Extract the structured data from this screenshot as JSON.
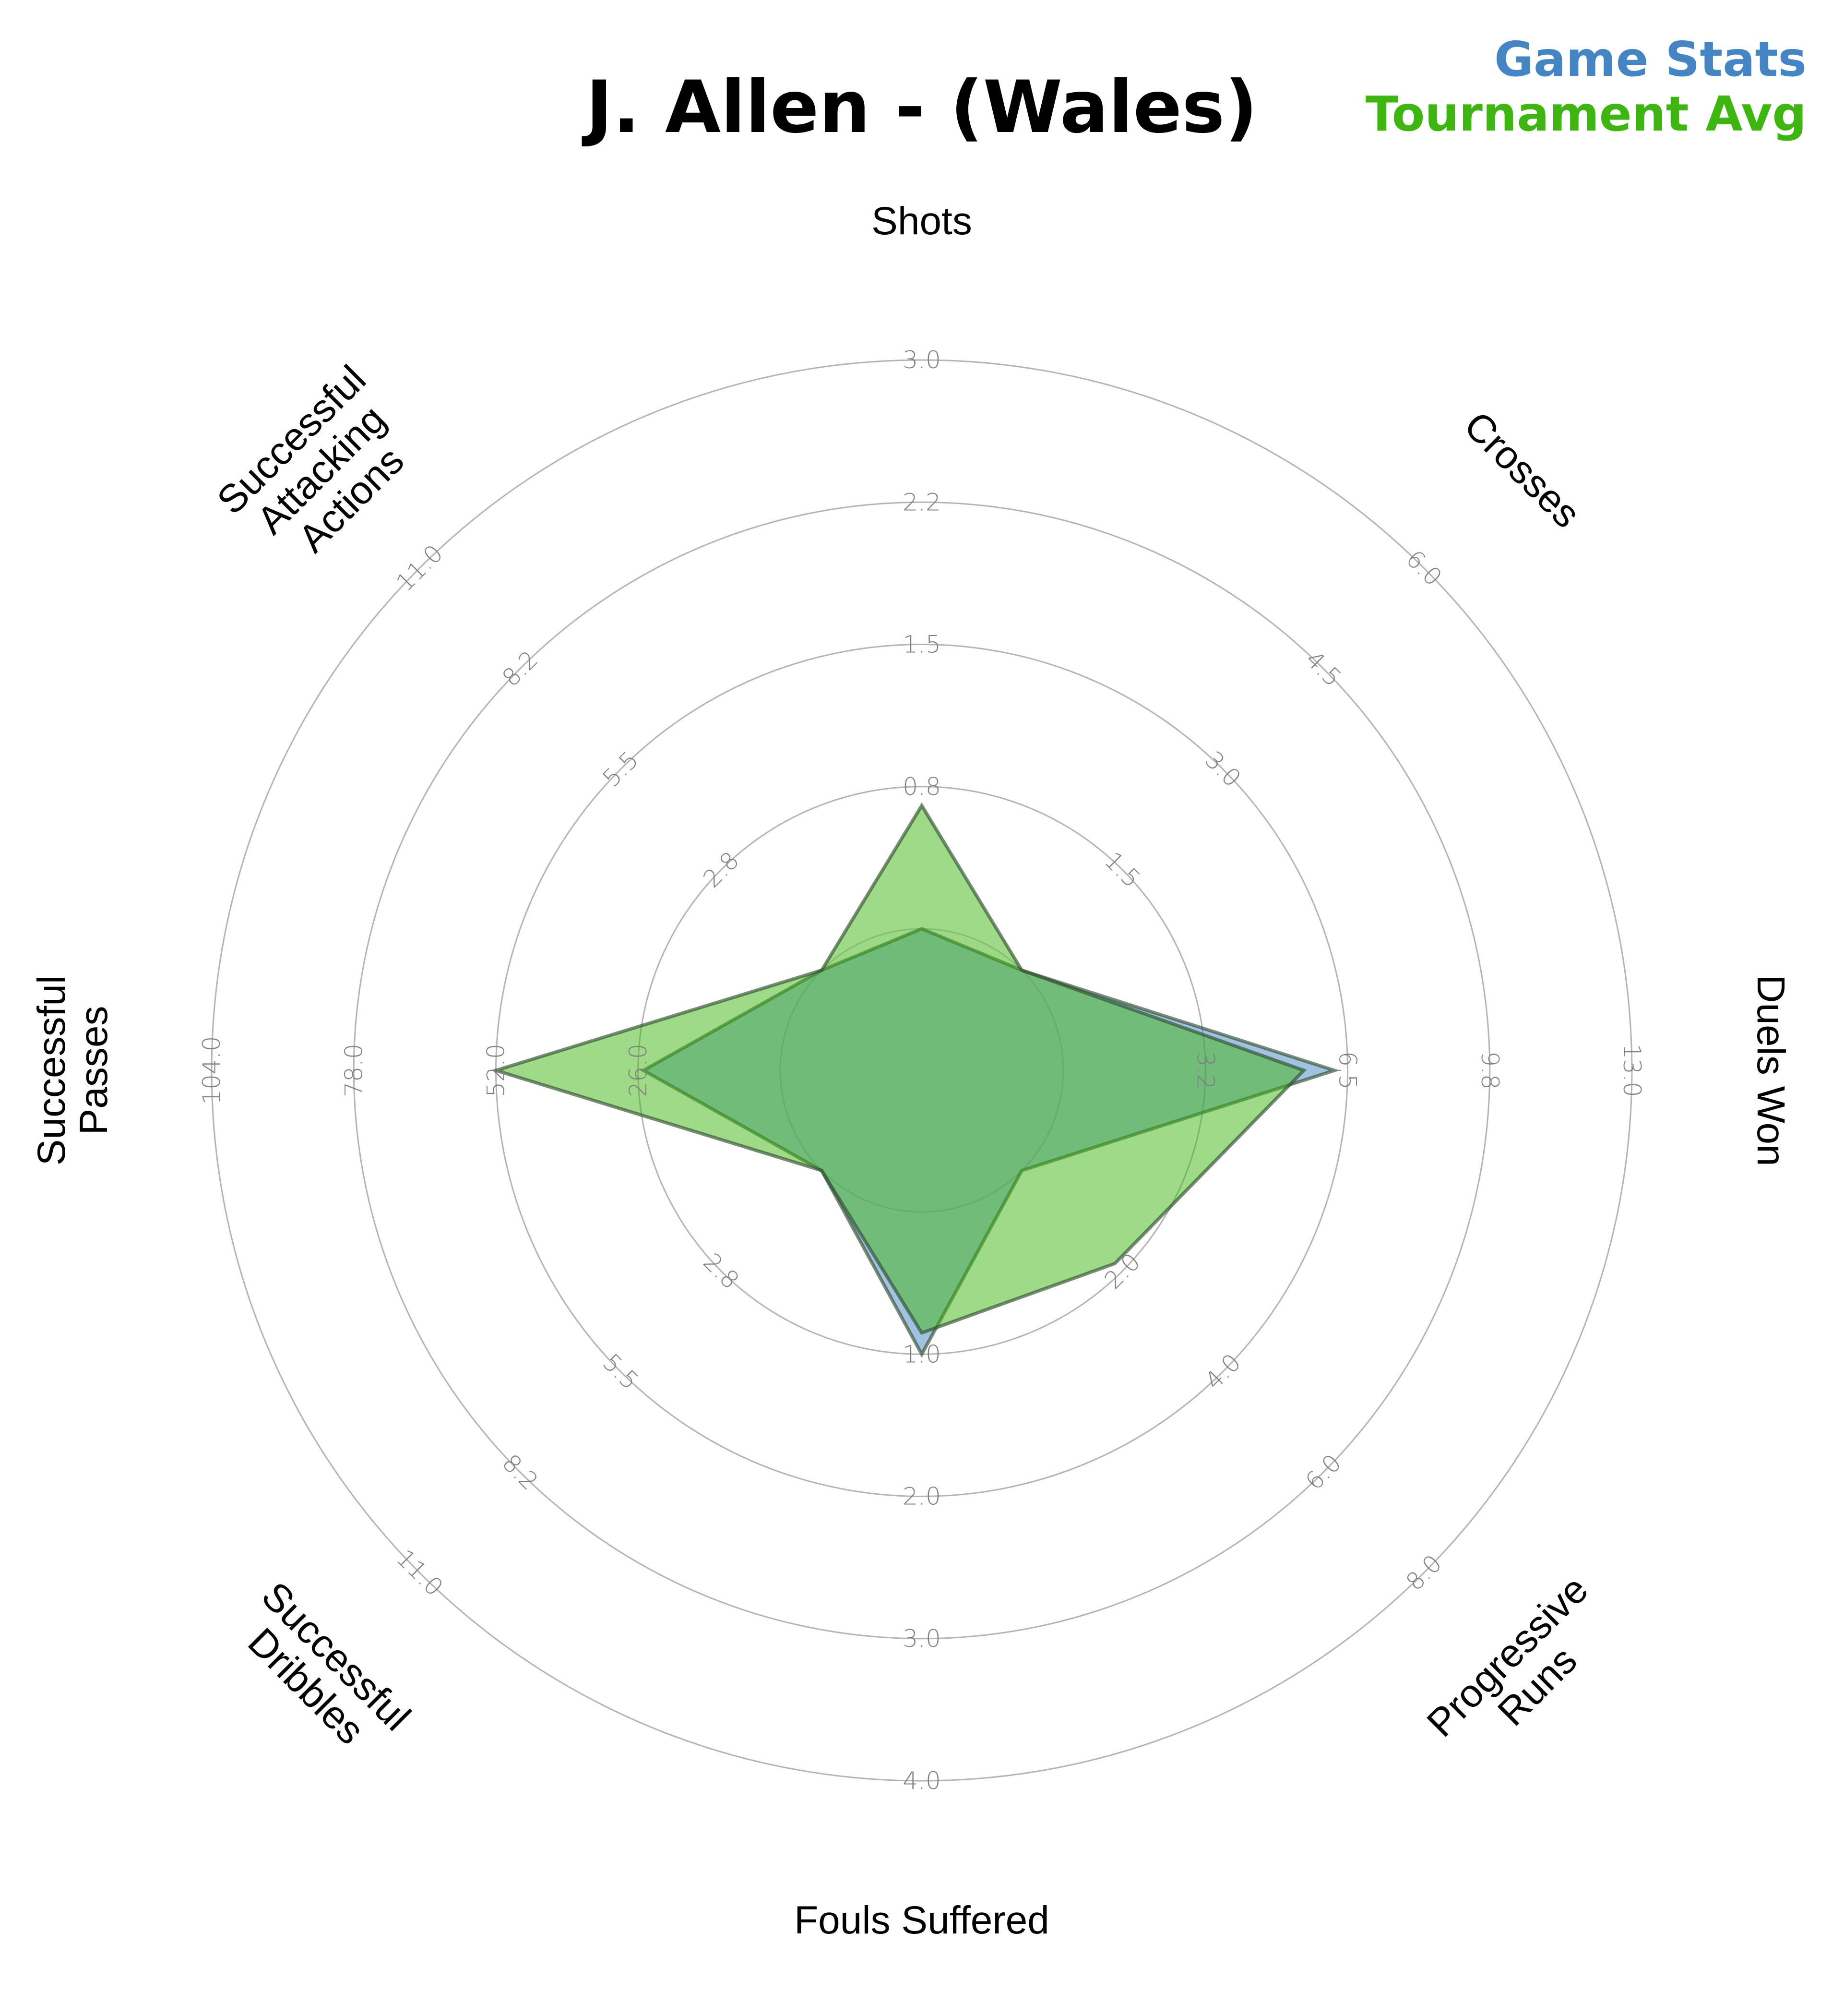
{
  "chart_data": {
    "type": "radar",
    "title": "J. Allen - (Wales)",
    "legend": [
      {
        "label": "Game Stats",
        "color": "#4585C4"
      },
      {
        "label": "Tournament Avg",
        "color": "#3EB510"
      }
    ],
    "legend_position": "top-right",
    "axes": [
      {
        "name": "Shots",
        "lines": [
          "Shots"
        ],
        "ticks": [
          "0.8",
          "1.5",
          "2.2",
          "3.0"
        ],
        "max": 3.0
      },
      {
        "name": "Crosses",
        "lines": [
          "Crosses"
        ],
        "ticks": [
          "1.5",
          "3.0",
          "4.5",
          "6.0"
        ],
        "max": 6.0
      },
      {
        "name": "Duels Won",
        "lines": [
          "Duels Won"
        ],
        "ticks": [
          "3.2",
          "6.5",
          "9.8",
          "13.0"
        ],
        "max": 13.0
      },
      {
        "name": "Progressive Runs",
        "lines": [
          "Progressive",
          "Runs"
        ],
        "ticks": [
          "2.0",
          "4.0",
          "6.0",
          "8.0"
        ],
        "max": 8.0
      },
      {
        "name": "Fouls Suffered",
        "lines": [
          "Fouls Suffered"
        ],
        "ticks": [
          "1.0",
          "2.0",
          "3.0",
          "4.0"
        ],
        "max": 4.0
      },
      {
        "name": "Successful Dribbles",
        "lines": [
          "Successful",
          "Dribbles"
        ],
        "ticks": [
          "2.8",
          "5.5",
          "8.2",
          "11.0"
        ],
        "max": 11.0
      },
      {
        "name": "Successful Passes",
        "lines": [
          "Successful",
          "Passes"
        ],
        "ticks": [
          "26.0",
          "52.0",
          "78.0",
          "104.0"
        ],
        "max": 104.0
      },
      {
        "name": "Successful Attacking Actions",
        "lines": [
          "Successful",
          "Attacking",
          "Actions"
        ],
        "ticks": [
          "2.8",
          "5.5",
          "8.2",
          "11.0"
        ],
        "max": 11.0
      }
    ],
    "series": [
      {
        "name": "Game Stats",
        "color": "#4585C4",
        "values": [
          0.0,
          0.0,
          6.2,
          0.0,
          1.0,
          0.0,
          25.0,
          0.0
        ]
      },
      {
        "name": "Tournament Avg",
        "color": "#3EB510",
        "values": [
          0.65,
          0.0,
          5.5,
          1.85,
          0.85,
          0.0,
          52.0,
          0.0
        ]
      }
    ],
    "grid": true
  }
}
